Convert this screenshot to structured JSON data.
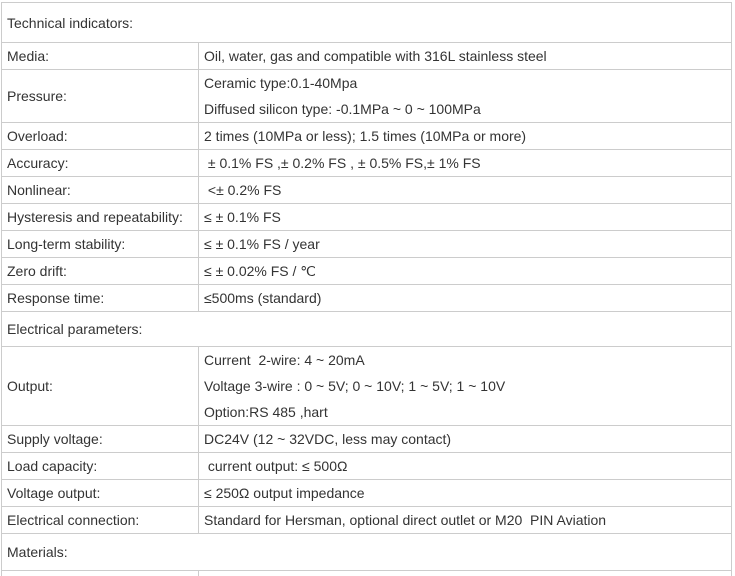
{
  "colors": {
    "text": "#333333",
    "border": "#cccccc",
    "background": "#ffffff"
  },
  "table": {
    "sections": [
      {
        "header": "Technical indicators:",
        "rows": [
          {
            "label": "Media:",
            "value": "Oil, water, gas and compatible with 316L stainless steel"
          },
          {
            "label": "Pressure:",
            "value": "Ceramic type:0.1-40Mpa\nDiffused silicon type: -0.1MPa ~ 0 ~ 100MPa"
          },
          {
            "label": "Overload:",
            "value": "2 times (10MPa or less); 1.5 times (10MPa or more)"
          },
          {
            "label": "Accuracy:",
            "value": " ± 0.1% FS ,± 0.2% FS , ± 0.5% FS,± 1% FS"
          },
          {
            "label": "Nonlinear:",
            "value": " <± 0.2% FS"
          },
          {
            "label": "Hysteresis and repeatability:",
            "value": "≤ ± 0.1% FS"
          },
          {
            "label": "Long-term stability:",
            "value": "≤ ± 0.1% FS / year"
          },
          {
            "label": "Zero drift:",
            "value": "≤ ± 0.02% FS / ℃"
          },
          {
            "label": "Response time:",
            "value": "≤500ms (standard)"
          }
        ]
      },
      {
        "header": "Electrical parameters:",
        "rows": [
          {
            "label": "Output:",
            "value": "Current  2-wire: 4 ~ 20mA\nVoltage 3-wire : 0 ~ 5V; 0 ~ 10V; 1 ~ 5V; 1 ~ 10V\nOption:RS 485 ,hart"
          },
          {
            "label": "Supply voltage:",
            "value": "DC24V (12 ~ 32VDC, less may contact)"
          },
          {
            "label": "Load capacity:",
            "value": " current output: ≤ 500Ω"
          },
          {
            "label": "Voltage output:",
            "value": "≤ 250Ω output impedance"
          },
          {
            "label": "Electrical connection:",
            "value": "Standard for Hersman, optional direct outlet or M20  PIN Aviation"
          }
        ]
      },
      {
        "header": "Materials:",
        "rows": [
          {
            "label": "",
            "value": ""
          }
        ]
      }
    ]
  }
}
